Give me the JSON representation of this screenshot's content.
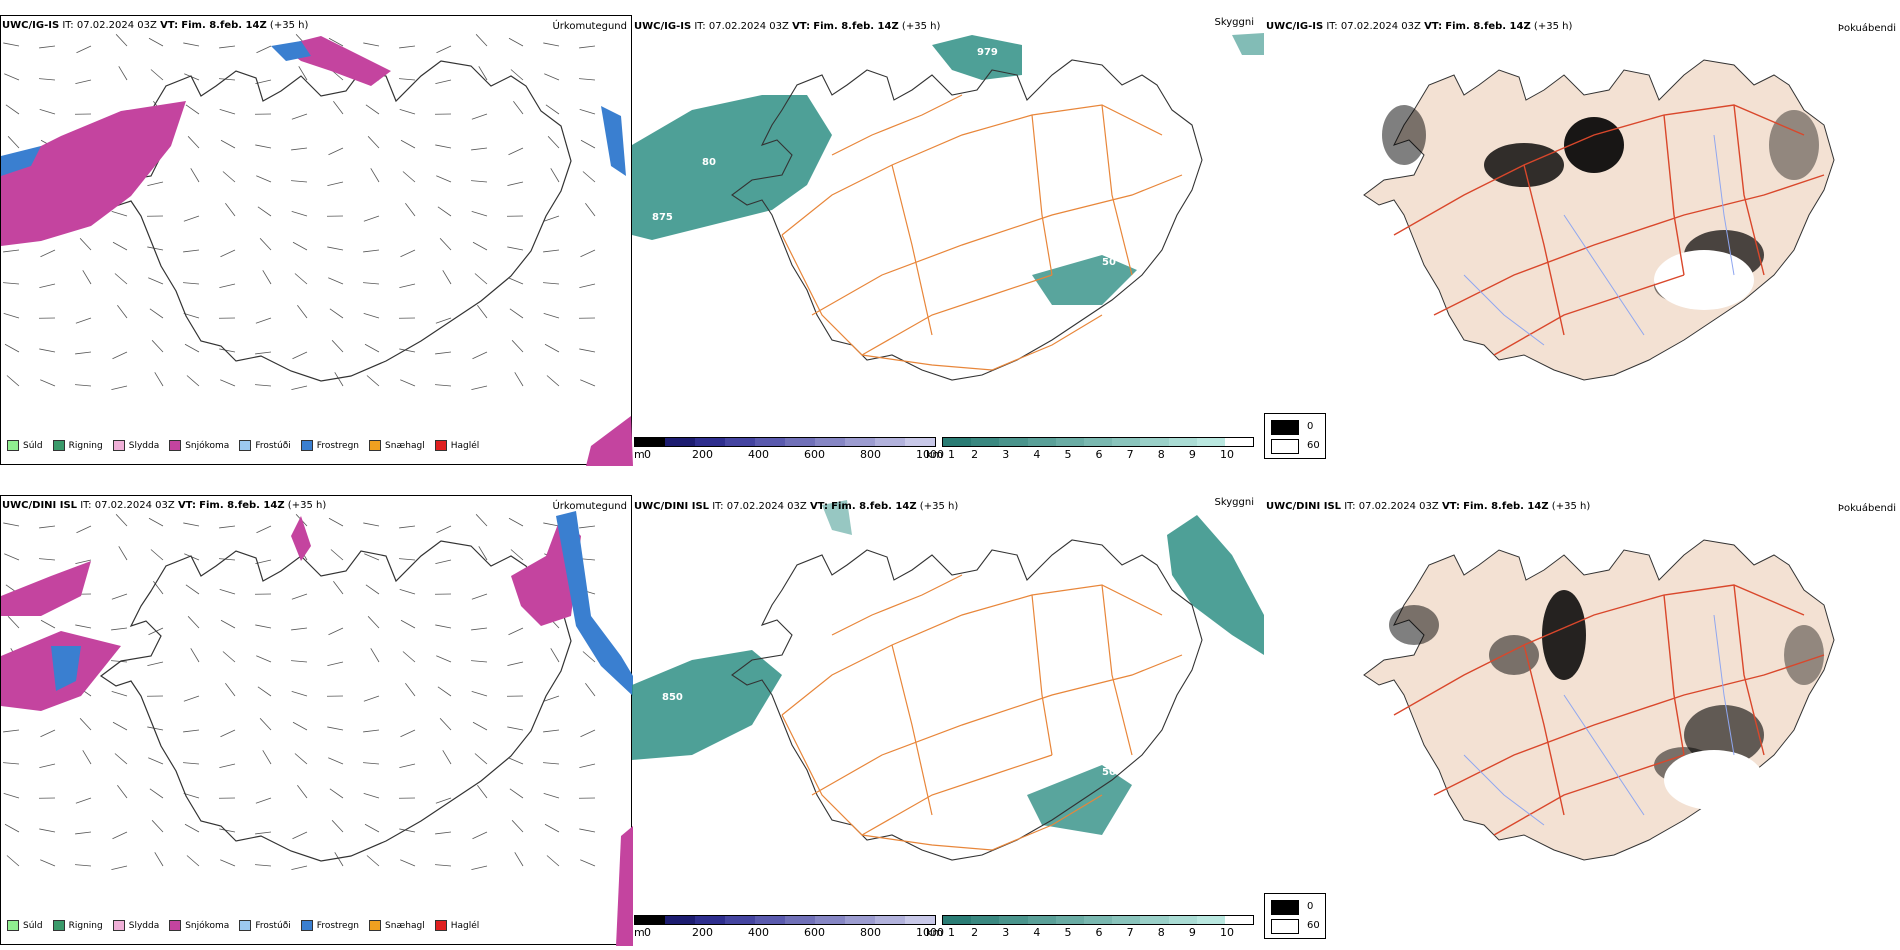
{
  "colors": {
    "sea": "#ffffff",
    "land_outline": "#333333",
    "road": "#e8863a",
    "road_red": "#d9472b",
    "river": "#8fa6f0",
    "cloud": "#2f8f85",
    "snow": "#c4449f",
    "freezing_rain": "#3a7fd0",
    "fog_land": "#f3e1d3"
  },
  "rows": [
    {
      "precip": {
        "model": "UWC/IG-IS",
        "it_label": "IT:",
        "it_value": "07.02.2024 03Z",
        "vt_label": "VT:",
        "vt_value": "Fim. 8.feb. 14Z",
        "lead": "(+35 h)",
        "title": "Úrkomutegund"
      },
      "cloud": {
        "model": "UWC/IG-IS",
        "it_label": "IT:",
        "it_value": "07.02.2024 03Z",
        "vt_label": "VT:",
        "vt_value": "Fim. 8.feb. 14Z",
        "lead": "(+35 h)",
        "title": "Skyggni",
        "contour_labels": [
          "979",
          "875",
          "80",
          "50"
        ]
      },
      "fog": {
        "model": "UWC/IG-IS",
        "it_label": "IT:",
        "it_value": "07.02.2024 03Z",
        "vt_label": "VT:",
        "vt_value": "Fim. 8.feb. 14Z",
        "lead": "(+35 h)",
        "title": "Þokuábendi"
      }
    },
    {
      "precip": {
        "model": "UWC/DINI ISL",
        "it_label": "IT:",
        "it_value": "07.02.2024 03Z",
        "vt_label": "VT:",
        "vt_value": "Fim. 8.feb. 14Z",
        "lead": "(+35 h)",
        "title": "Úrkomutegund"
      },
      "cloud": {
        "model": "UWC/DINI ISL",
        "it_label": "IT:",
        "it_value": "07.02.2024 03Z",
        "vt_label": "VT:",
        "vt_value": "Fim. 8.feb. 14Z",
        "lead": "(+35 h)",
        "title": "Skyggni",
        "contour_labels": [
          "850",
          "50"
        ]
      },
      "fog": {
        "model": "UWC/DINI ISL",
        "it_label": "IT:",
        "it_value": "07.02.2024 03Z",
        "vt_label": "VT:",
        "vt_value": "Fim. 8.feb. 14Z",
        "lead": "(+35 h)",
        "title": "Þokuábendi"
      }
    }
  ],
  "precip_legend": [
    {
      "label": "Súld",
      "color": "#90ee90"
    },
    {
      "label": "Rigning",
      "color": "#3a9a6a"
    },
    {
      "label": "Slydda",
      "color": "#f0b0d8"
    },
    {
      "label": "Snjókoma",
      "color": "#c4449f"
    },
    {
      "label": "Frostúði",
      "color": "#9cc8f0"
    },
    {
      "label": "Frostregn",
      "color": "#3a7fd0"
    },
    {
      "label": "Snæhagl",
      "color": "#f0a020"
    },
    {
      "label": "Haglél",
      "color": "#e02020"
    }
  ],
  "ceiling_bar": {
    "unit": "m",
    "ticks": [
      "0",
      "200",
      "400",
      "600",
      "800",
      "1000"
    ],
    "colors": [
      "#000000",
      "#1c1c70",
      "#2e2e8e",
      "#4444a0",
      "#5a5aae",
      "#7070b8",
      "#8686c4",
      "#9c9cd0",
      "#b2b2dc",
      "#c8c8e8"
    ]
  },
  "visibility_bar": {
    "unit": "km",
    "ticks": [
      "1",
      "2",
      "3",
      "4",
      "5",
      "6",
      "7",
      "8",
      "9",
      "10"
    ],
    "colors": [
      "#2a7c74",
      "#3a8880",
      "#4a948c",
      "#5aa098",
      "#6aaca4",
      "#7ab8b0",
      "#8ac4bc",
      "#9ad0c8",
      "#aadcd4",
      "#bae8e0",
      "#ffffff"
    ]
  },
  "fog_legend": [
    {
      "label": "0",
      "color": "#000000"
    },
    {
      "label": "60",
      "color": "#ffffff"
    }
  ]
}
